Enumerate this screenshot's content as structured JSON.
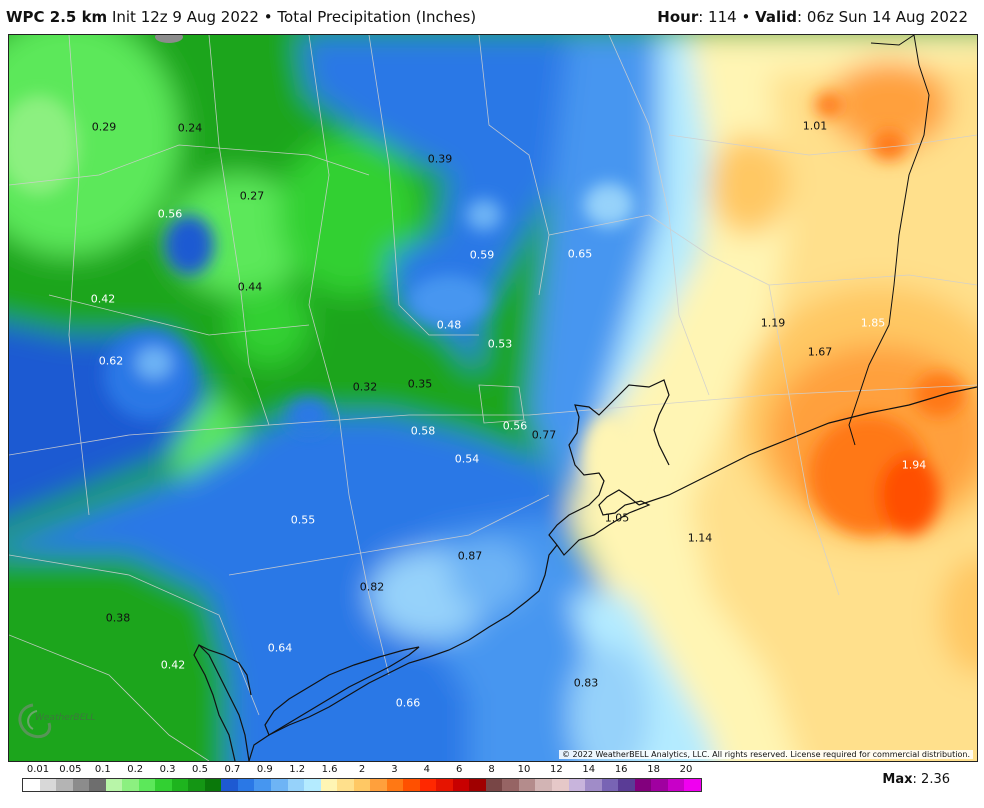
{
  "header": {
    "model": "WPC 2.5 km",
    "init": "Init 12z 9 Aug 2022",
    "bullet": "•",
    "product": "Total Precipitation (Inches)",
    "hour_label": "Hour",
    "hour_value": ": 114",
    "valid_label": "Valid",
    "valid_value": ": 06z Sun 14 Aug 2022"
  },
  "map": {
    "labels": [
      {
        "text": "0.29"
      },
      {
        "text": "0.24"
      },
      {
        "text": "0.39"
      },
      {
        "text": "1.01"
      },
      {
        "text": "0.27"
      },
      {
        "text": "0.56"
      },
      {
        "text": "0.59"
      },
      {
        "text": "0.65"
      },
      {
        "text": "0.44"
      },
      {
        "text": "0.42"
      },
      {
        "text": "0.48"
      },
      {
        "text": "0.53"
      },
      {
        "text": "1.19"
      },
      {
        "text": "1.85"
      },
      {
        "text": "1.67"
      },
      {
        "text": "0.62"
      },
      {
        "text": "0.32"
      },
      {
        "text": "0.35"
      },
      {
        "text": "0.58"
      },
      {
        "text": "0.56"
      },
      {
        "text": "0.77"
      },
      {
        "text": "0.54"
      },
      {
        "text": "1.94"
      },
      {
        "text": "0.55"
      },
      {
        "text": "1.05"
      },
      {
        "text": "1.14"
      },
      {
        "text": "0.87"
      },
      {
        "text": "0.82"
      },
      {
        "text": "0.38"
      },
      {
        "text": "0.64"
      },
      {
        "text": "0.42"
      },
      {
        "text": "0.83"
      },
      {
        "text": "0.66"
      }
    ],
    "copyright": "© 2022 WeatherBELL Analytics, LLC. All rights reserved. License required for commercial distribution.",
    "logo_text": "WeatherBELL"
  },
  "legend": {
    "ticks": [
      "0.01",
      "0.05",
      "0.1",
      "0.2",
      "0.3",
      "0.5",
      "0.7",
      "0.9",
      "1.2",
      "1.6",
      "2",
      "3",
      "4",
      "6",
      "8",
      "10",
      "12",
      "14",
      "16",
      "18",
      "20"
    ],
    "colors": [
      "#ffffff",
      "#d8d8d8",
      "#b4b4b4",
      "#8c8c8c",
      "#6e6e6e",
      "#b8f5a8",
      "#8cf080",
      "#5ce85a",
      "#32d032",
      "#1eb41e",
      "#149614",
      "#0a780a",
      "#1e5ad2",
      "#2a78e6",
      "#4696f0",
      "#6eb4f5",
      "#96d2fa",
      "#b4ebff",
      "#fff5b4",
      "#ffe08c",
      "#ffc864",
      "#ffa03c",
      "#ff7814",
      "#ff5000",
      "#ff2800",
      "#e61400",
      "#c80000",
      "#a00000",
      "#784646",
      "#966464",
      "#b48c8c",
      "#d2b4b4",
      "#e6c8c8",
      "#c8b4dc",
      "#a08cc8",
      "#7864b4",
      "#5a3c96",
      "#82007d",
      "#a000a0",
      "#c800c8",
      "#f000f0"
    ],
    "max_label": "Max",
    "max_value": ": 2.36"
  }
}
